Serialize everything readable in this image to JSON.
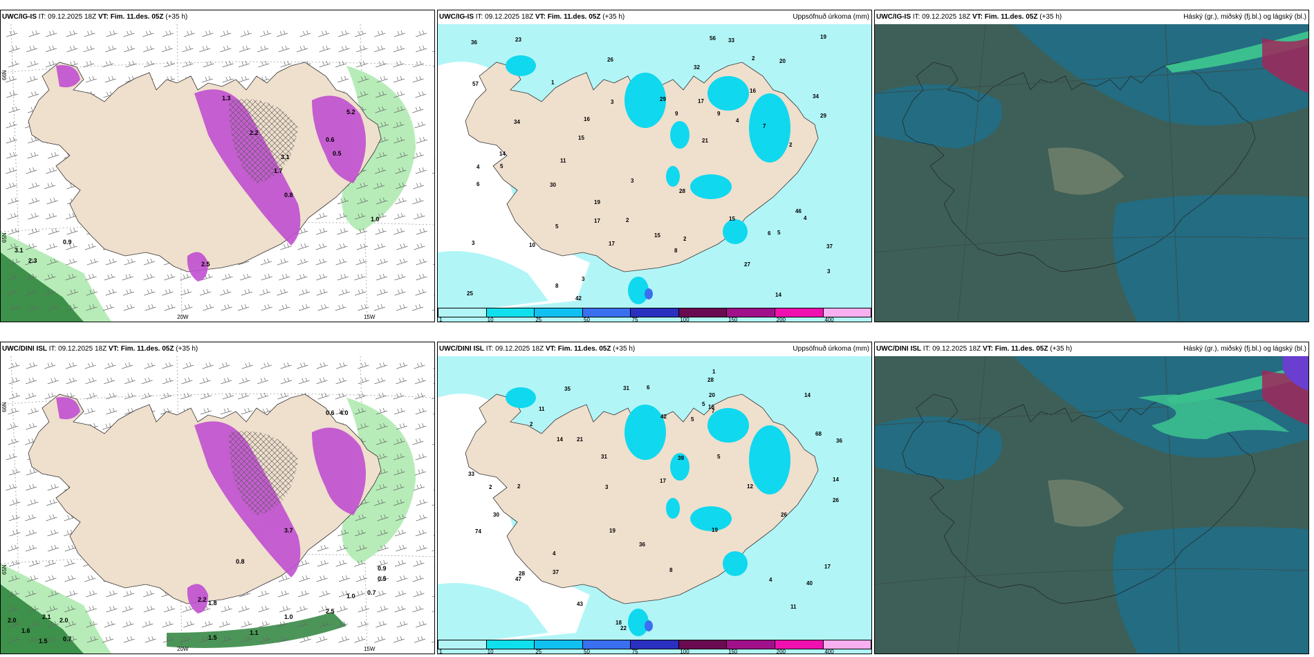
{
  "panels": [
    {
      "model": "UWC/IG-IS",
      "it_prefix": "IT:",
      "it": "09.12.2025 18Z",
      "vt_prefix": "VT:",
      "vt": "Fim. 11.des. 05Z",
      "lead": "(+35 h)",
      "right_title": "",
      "kind": "precip-type",
      "lon_labels": [
        "20W",
        "15W"
      ],
      "lat_labels": [
        "66N",
        "65N"
      ],
      "values": [
        "3.1",
        "2.3",
        "0.9",
        "1.0",
        "2.2",
        "3.1",
        "1.7",
        "0.8",
        "1.3",
        "0.6",
        "0.5",
        "5.2",
        "2.5"
      ]
    },
    {
      "model": "UWC/IG-IS",
      "it_prefix": "IT:",
      "it": "09.12.2025 18Z",
      "vt_prefix": "VT:",
      "vt": "Fim. 11.des. 05Z",
      "lead": "(+35 h)",
      "right_title": "Uppsöfnuð úrkoma (mm)",
      "kind": "accum",
      "values": [
        "4",
        "4",
        "3",
        "3",
        "2",
        "2",
        "37",
        "34",
        "15",
        "4",
        "2",
        "17",
        "10",
        "28",
        "19",
        "14",
        "26",
        "29",
        "25",
        "17",
        "8",
        "5",
        "21",
        "20",
        "23",
        "27",
        "56",
        "57",
        "42",
        "36",
        "30",
        "32",
        "11",
        "5",
        "6",
        "15",
        "29",
        "46",
        "33",
        "34",
        "15",
        "2",
        "3",
        "1",
        "9",
        "7",
        "3",
        "3",
        "19",
        "16",
        "14",
        "16",
        "17",
        "8",
        "9",
        "6",
        "5"
      ]
    },
    {
      "model": "UWC/IG-IS",
      "it_prefix": "IT:",
      "it": "09.12.2025 18Z",
      "vt_prefix": "VT:",
      "vt": "Fim. 11.des. 05Z",
      "lead": "(+35 h)",
      "right_title": "Háský (gr.), miðský (fj.bl.) og lágský (bl.)",
      "kind": "cloud",
      "values": []
    },
    {
      "model": "UWC/DINI ISL",
      "it_prefix": "IT:",
      "it": "09.12.2025 18Z",
      "vt_prefix": "VT:",
      "vt": "Fim. 11.des. 05Z",
      "lead": "(+35 h)",
      "right_title": "",
      "kind": "precip-type",
      "lon_labels": [
        "20W",
        "15W"
      ],
      "lat_labels": [
        "66N",
        "65N"
      ],
      "values": [
        "2.0",
        "1.6",
        "1.5",
        "2.1",
        "2.0",
        "0.7",
        "1.5",
        "1.1",
        "1.0",
        "2.5",
        "0.9",
        "0.5",
        "0.7",
        "1.0",
        "2.2",
        "1.8",
        "3.7",
        "0.8",
        "0.6",
        "4.0"
      ]
    },
    {
      "model": "UWC/DINI ISL",
      "it_prefix": "IT:",
      "it": "09.12.2025 18Z",
      "vt_prefix": "VT:",
      "vt": "Fim. 11.des. 05Z",
      "lead": "(+35 h)",
      "right_title": "Uppsöfnuð úrkoma (mm)",
      "kind": "accum",
      "values": [
        "4",
        "5",
        "5",
        "5",
        "3",
        "4",
        "43",
        "26",
        "11",
        "16",
        "22",
        "28",
        "36",
        "31",
        "17",
        "19",
        "11",
        "7",
        "26",
        "30",
        "39",
        "21",
        "19",
        "74",
        "68",
        "36",
        "31",
        "37",
        "28",
        "40",
        "42",
        "35",
        "33",
        "47",
        "20",
        "14",
        "18",
        "2",
        "2",
        "1",
        "2",
        "14",
        "14",
        "12",
        "17",
        "6",
        "8"
      ]
    },
    {
      "model": "UWC/DINI ISL",
      "it_prefix": "IT:",
      "it": "09.12.2025 18Z",
      "vt_prefix": "VT:",
      "vt": "Fim. 11.des. 05Z",
      "lead": "(+35 h)",
      "right_title": "Háský (gr.), miðský (fj.bl.) og lágský (bl.)",
      "kind": "cloud",
      "values": []
    }
  ],
  "legend": {
    "ticks": [
      "1",
      "10",
      "25",
      "50",
      "75",
      "100",
      "150",
      "200",
      "400"
    ],
    "colors": [
      "#b2f5f7",
      "#10e0ee",
      "#10c0f0",
      "#3a70f0",
      "#2a30c0",
      "#6a0a50",
      "#a0108a",
      "#f010b0",
      "#f8b0f0"
    ]
  },
  "colors": {
    "land": "#efdfcd",
    "sea_precip": "#b2f5f7",
    "rain_green_light": "#b7ecb8",
    "rain_green_dark": "#1e7a2e",
    "snow_purple": "#c050d0",
    "cloud_high": "#3bbf8f",
    "cloud_mid": "#1f6f8a",
    "cloud_low": "#3d5f57"
  }
}
